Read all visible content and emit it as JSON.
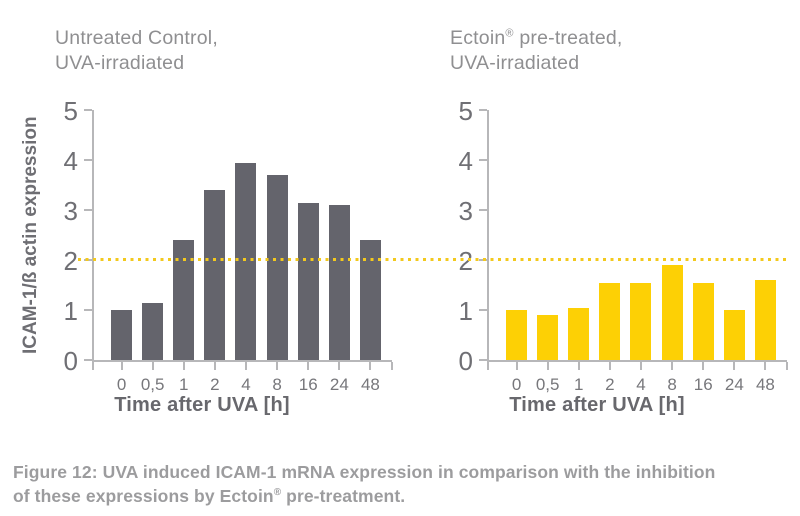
{
  "figure": {
    "background": "#ffffff",
    "axis_color": "#b7b7b9",
    "text_gray": "#8f8f91",
    "axis_text_color": "#6f6f74"
  },
  "chart_data": [
    {
      "type": "bar",
      "title": "Untreated Control, UVA-irradiated",
      "title_parts": {
        "pre": "Untreated Control,",
        "sup": "",
        "post": ""
      },
      "title_line2": "UVA-irradiated",
      "categories": [
        "0",
        "0,5",
        "1",
        "2",
        "4",
        "8",
        "16",
        "24",
        "48"
      ],
      "values": [
        1.0,
        1.15,
        2.4,
        3.4,
        3.95,
        3.7,
        3.15,
        3.1,
        2.4
      ],
      "xlabel": "Time after UVA [h]",
      "ylabel": "ICAM-1/ß actin expression",
      "ylim": [
        0,
        5
      ],
      "yticks": [
        0,
        1,
        2,
        3,
        4,
        5
      ],
      "grid": false,
      "legend": "none",
      "bar_color": "#64646c",
      "threshold_line": {
        "value": 2.05,
        "style": "dotted",
        "color": "#f3c91d"
      }
    },
    {
      "type": "bar",
      "title": "Ectoin® pre-treated, UVA-irradiated",
      "title_parts": {
        "pre": "Ectoin",
        "sup": "®",
        "post": " pre-treated,"
      },
      "title_line2": "UVA-irradiated",
      "categories": [
        "0",
        "0,5",
        "1",
        "2",
        "4",
        "8",
        "16",
        "24",
        "48"
      ],
      "values": [
        1.0,
        0.9,
        1.05,
        1.55,
        1.55,
        1.9,
        1.55,
        1.0,
        1.6
      ],
      "xlabel": "Time after UVA [h]",
      "ylabel": "",
      "ylim": [
        0,
        5
      ],
      "yticks": [
        0,
        1,
        2,
        3,
        4,
        5
      ],
      "grid": false,
      "legend": "none",
      "bar_color": "#fdd005",
      "threshold_line": {
        "value": 2.05,
        "style": "dotted",
        "color": "#f3c91d"
      }
    }
  ],
  "caption": {
    "line1": "Figure 12: UVA induced ICAM-1 mRNA expression in comparison with the inhibition",
    "line2_pre": "of these expressions by Ectoin",
    "line2_sup": "®",
    "line2_post": " pre-treatment."
  }
}
